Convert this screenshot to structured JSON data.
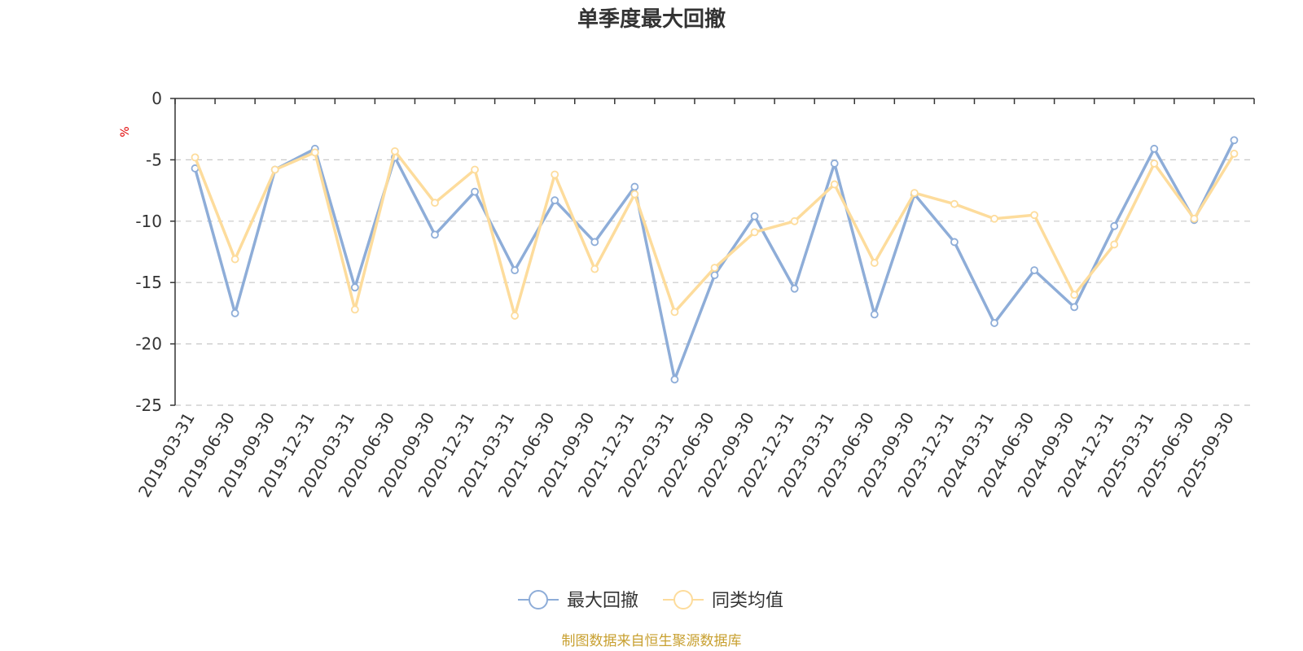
{
  "chart_data": {
    "type": "line",
    "title": "单季度最大回撤",
    "ylabel": "%",
    "ylim": [
      -25,
      0
    ],
    "yticks": [
      0,
      -5,
      -10,
      -15,
      -20,
      -25
    ],
    "ytick_labels": [
      "0",
      "-5",
      "-10",
      "-15",
      "-20",
      "-25"
    ],
    "grid": true,
    "legend_position": "bottom-center",
    "categories": [
      "2019-03-31",
      "2019-06-30",
      "2019-09-30",
      "2019-12-31",
      "2020-03-31",
      "2020-06-30",
      "2020-09-30",
      "2020-12-31",
      "2021-03-31",
      "2021-06-30",
      "2021-09-30",
      "2021-12-31",
      "2022-03-31",
      "2022-06-30",
      "2022-09-30",
      "2022-12-31",
      "2023-03-31",
      "2023-06-30",
      "2023-09-30",
      "2023-12-31",
      "2024-03-31",
      "2024-06-30",
      "2024-09-30",
      "2024-12-31",
      "2025-03-31",
      "2025-06-30",
      "2025-09-30"
    ],
    "series": [
      {
        "name": "最大回撤",
        "color": "#8eadd8",
        "values": [
          -5.7,
          -17.5,
          -5.8,
          -4.1,
          -15.4,
          -4.8,
          -11.1,
          -7.6,
          -14.0,
          -8.3,
          -11.7,
          -7.2,
          -22.9,
          -14.4,
          -9.6,
          -15.5,
          -5.3,
          -17.6,
          -7.8,
          -11.7,
          -18.3,
          -14.0,
          -17.0,
          -10.4,
          -4.1,
          -9.9,
          -3.4
        ]
      },
      {
        "name": "同类均值",
        "color": "#fddc9c",
        "values": [
          -4.8,
          -13.1,
          -5.8,
          -4.4,
          -17.2,
          -4.3,
          -8.5,
          -5.8,
          -17.7,
          -6.2,
          -13.9,
          -7.8,
          -17.4,
          -13.8,
          -10.9,
          -10.0,
          -7.0,
          -13.4,
          -7.7,
          -8.6,
          -9.8,
          -9.5,
          -16.0,
          -11.9,
          -5.3,
          -9.8,
          -4.5
        ]
      }
    ]
  },
  "footer": {
    "source": "制图数据来自恒生聚源数据库"
  }
}
